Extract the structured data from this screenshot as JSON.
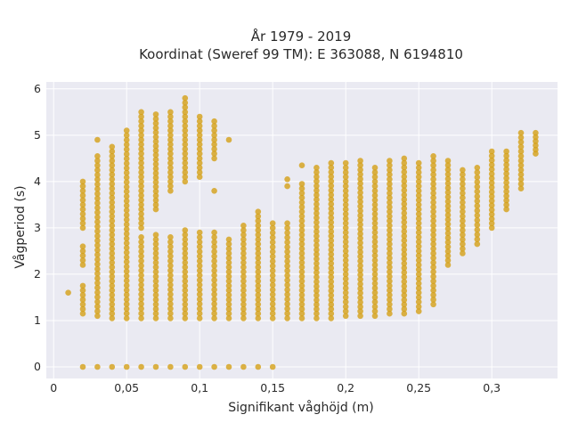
{
  "chart_data": {
    "type": "scatter",
    "title_line1": "År 1979 - 2019",
    "title_line2": "Koordinat (Sweref 99 TM): E 363088, N 6194810",
    "xlabel": "Signifikant våghöjd (m)",
    "ylabel": "Vågperiod (s)",
    "xlim": [
      -0.005,
      0.345
    ],
    "ylim": [
      -0.25,
      6.15
    ],
    "grid": true,
    "legend": "none",
    "marker_color": "#d4a017",
    "background_color": "#eaeaf2",
    "x_ticks": [
      {
        "value": 0,
        "label": "0"
      },
      {
        "value": 0.05,
        "label": "0,05"
      },
      {
        "value": 0.1,
        "label": "0,1"
      },
      {
        "value": 0.15,
        "label": "0,15"
      },
      {
        "value": 0.2,
        "label": "0,2"
      },
      {
        "value": 0.25,
        "label": "0,25"
      },
      {
        "value": 0.3,
        "label": "0,3"
      }
    ],
    "y_ticks": [
      {
        "value": 0,
        "label": "0"
      },
      {
        "value": 1,
        "label": "1"
      },
      {
        "value": 2,
        "label": "2"
      },
      {
        "value": 3,
        "label": "3"
      },
      {
        "value": 4,
        "label": "4"
      },
      {
        "value": 5,
        "label": "5"
      },
      {
        "value": 6,
        "label": "6"
      }
    ],
    "columns": [
      {
        "x": 0.01,
        "ranges": [
          [
            1.6,
            1.6
          ]
        ]
      },
      {
        "x": 0.02,
        "ranges": [
          [
            0,
            0
          ],
          [
            1.15,
            1.75
          ],
          [
            2.2,
            2.6
          ],
          [
            3.0,
            4.0
          ]
        ]
      },
      {
        "x": 0.03,
        "ranges": [
          [
            0,
            0
          ],
          [
            1.1,
            4.55
          ],
          [
            4.9,
            4.9
          ]
        ]
      },
      {
        "x": 0.04,
        "ranges": [
          [
            0,
            0
          ],
          [
            1.05,
            4.75
          ]
        ]
      },
      {
        "x": 0.05,
        "ranges": [
          [
            0,
            0
          ],
          [
            1.05,
            5.1
          ]
        ]
      },
      {
        "x": 0.06,
        "ranges": [
          [
            0,
            0
          ],
          [
            1.05,
            2.8
          ],
          [
            3.0,
            5.5
          ]
        ]
      },
      {
        "x": 0.07,
        "ranges": [
          [
            0,
            0
          ],
          [
            1.05,
            2.85
          ],
          [
            3.4,
            5.45
          ]
        ]
      },
      {
        "x": 0.08,
        "ranges": [
          [
            0,
            0
          ],
          [
            1.05,
            2.8
          ],
          [
            3.8,
            5.5
          ]
        ]
      },
      {
        "x": 0.09,
        "ranges": [
          [
            0,
            0
          ],
          [
            1.05,
            2.95
          ],
          [
            4.0,
            5.8
          ]
        ]
      },
      {
        "x": 0.1,
        "ranges": [
          [
            0,
            0
          ],
          [
            1.05,
            2.9
          ],
          [
            4.1,
            5.4
          ]
        ]
      },
      {
        "x": 0.11,
        "ranges": [
          [
            0,
            0
          ],
          [
            1.05,
            2.9
          ],
          [
            3.8,
            3.8
          ],
          [
            4.5,
            5.3
          ]
        ]
      },
      {
        "x": 0.12,
        "ranges": [
          [
            0,
            0
          ],
          [
            1.05,
            2.75
          ],
          [
            4.9,
            4.95
          ]
        ]
      },
      {
        "x": 0.13,
        "ranges": [
          [
            0,
            0
          ],
          [
            1.05,
            3.05
          ]
        ]
      },
      {
        "x": 0.14,
        "ranges": [
          [
            0,
            0
          ],
          [
            1.05,
            3.35
          ]
        ]
      },
      {
        "x": 0.15,
        "ranges": [
          [
            0,
            0
          ],
          [
            1.05,
            3.1
          ]
        ]
      },
      {
        "x": 0.16,
        "ranges": [
          [
            1.05,
            3.1
          ],
          [
            3.9,
            4.05
          ]
        ]
      },
      {
        "x": 0.17,
        "ranges": [
          [
            1.05,
            3.95
          ],
          [
            4.35,
            4.35
          ]
        ]
      },
      {
        "x": 0.18,
        "ranges": [
          [
            1.05,
            4.3
          ]
        ]
      },
      {
        "x": 0.19,
        "ranges": [
          [
            1.05,
            4.4
          ]
        ]
      },
      {
        "x": 0.2,
        "ranges": [
          [
            1.1,
            4.4
          ]
        ]
      },
      {
        "x": 0.21,
        "ranges": [
          [
            1.1,
            4.45
          ]
        ]
      },
      {
        "x": 0.22,
        "ranges": [
          [
            1.1,
            4.3
          ]
        ]
      },
      {
        "x": 0.23,
        "ranges": [
          [
            1.15,
            4.45
          ]
        ]
      },
      {
        "x": 0.24,
        "ranges": [
          [
            1.15,
            4.5
          ]
        ]
      },
      {
        "x": 0.25,
        "ranges": [
          [
            1.2,
            4.4
          ]
        ]
      },
      {
        "x": 0.26,
        "ranges": [
          [
            1.35,
            4.55
          ]
        ]
      },
      {
        "x": 0.27,
        "ranges": [
          [
            2.2,
            4.45
          ]
        ]
      },
      {
        "x": 0.28,
        "ranges": [
          [
            2.45,
            4.25
          ]
        ]
      },
      {
        "x": 0.29,
        "ranges": [
          [
            2.65,
            4.3
          ]
        ]
      },
      {
        "x": 0.3,
        "ranges": [
          [
            3.0,
            4.65
          ]
        ]
      },
      {
        "x": 0.31,
        "ranges": [
          [
            3.4,
            4.65
          ]
        ]
      },
      {
        "x": 0.32,
        "ranges": [
          [
            3.85,
            5.05
          ]
        ]
      },
      {
        "x": 0.33,
        "ranges": [
          [
            4.6,
            5.05
          ]
        ]
      }
    ]
  }
}
